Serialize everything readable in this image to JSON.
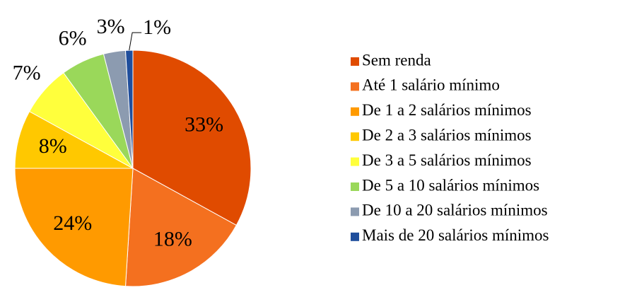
{
  "chart_data": {
    "type": "pie",
    "categories": [
      "Sem renda",
      "Até 1 salário mínimo",
      "De 1 a 2 salários mínimos",
      "De 2 a 3 salários mínimos",
      "De 3 a 5 salários mínimos",
      "De 5 a 10 salários mínimos",
      "De 10 a 20 salários mínimos",
      "Mais de 20 salários mínimos"
    ],
    "values": [
      33,
      18,
      24,
      8,
      7,
      6,
      3,
      1
    ],
    "value_labels": [
      "33%",
      "18%",
      "24%",
      "8%",
      "7%",
      "6%",
      "3%",
      "1%"
    ],
    "colors": [
      "#e04b00",
      "#f4701f",
      "#ff9a00",
      "#ffc800",
      "#ffff3c",
      "#9ad85a",
      "#8c9bb0",
      "#1f4e9c"
    ],
    "legend": "right"
  }
}
